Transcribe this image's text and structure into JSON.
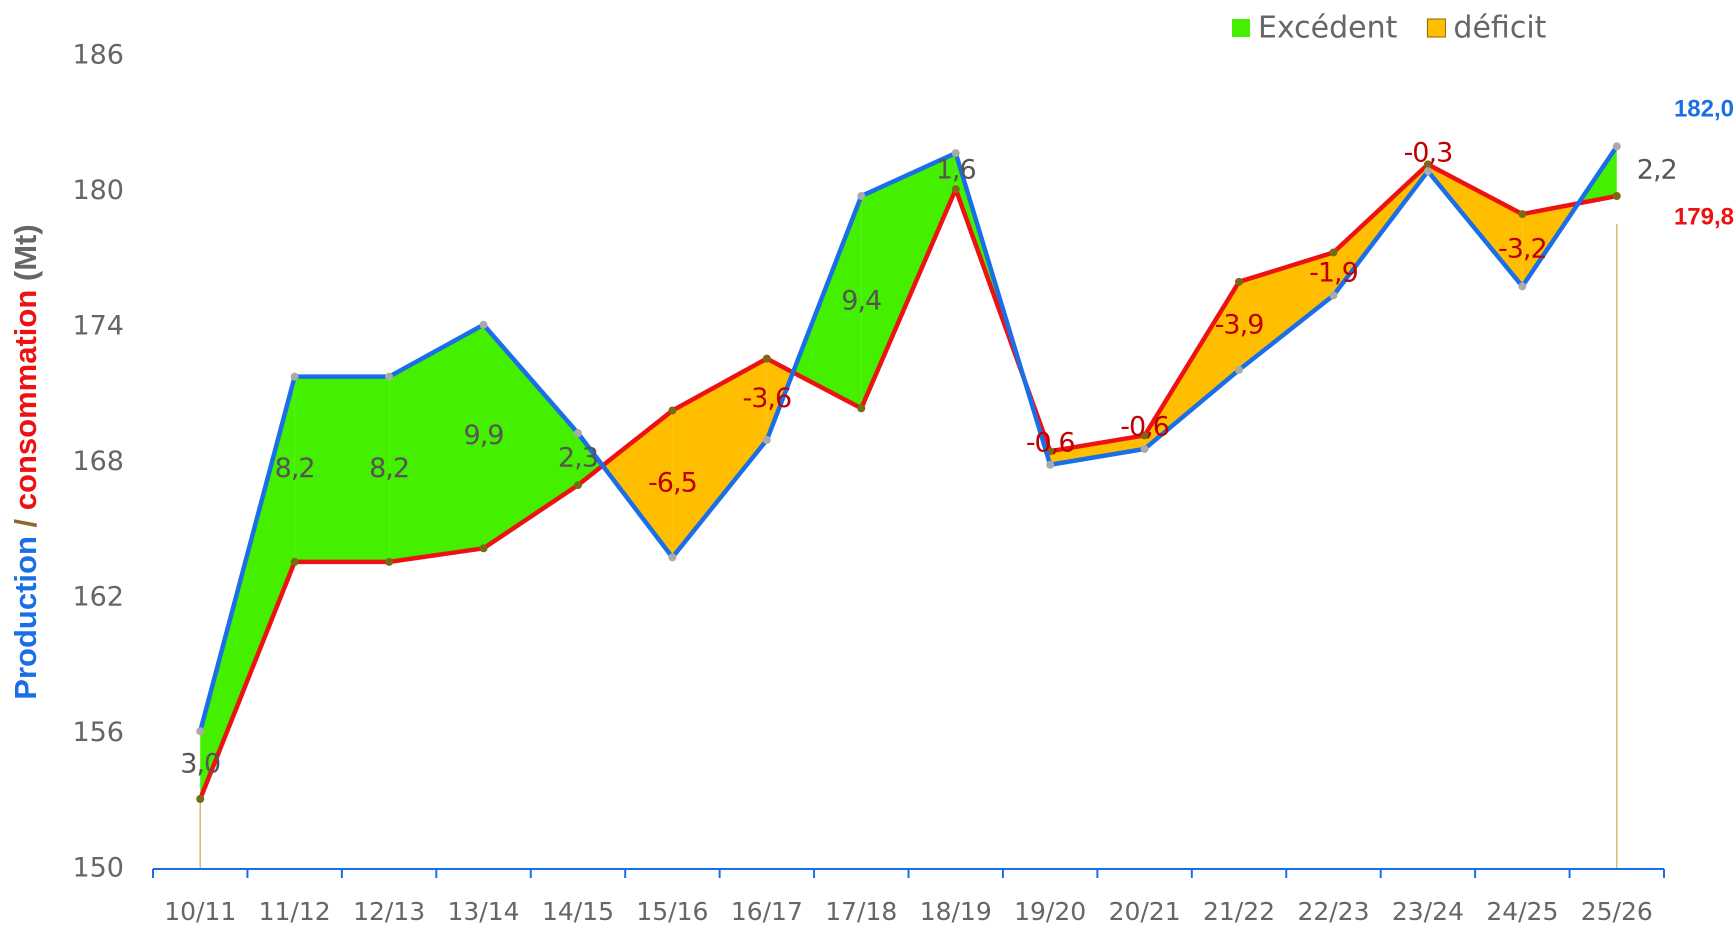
{
  "chart_data": {
    "type": "line",
    "ylabel_parts": [
      "Production",
      "/",
      "consommation",
      "(Mt)"
    ],
    "categories": [
      "10/11",
      "11/12",
      "12/13",
      "13/14",
      "14/15",
      "15/16",
      "16/17",
      "17/18",
      "18/19",
      "19/20",
      "20/21",
      "21/22",
      "22/23",
      "23/24",
      "24/25",
      "25/26"
    ],
    "series": [
      {
        "name": "Production",
        "color": "#1a6fe8",
        "values": [
          156.1,
          171.8,
          171.8,
          174.1,
          169.3,
          163.8,
          169.0,
          179.8,
          181.7,
          167.9,
          168.6,
          172.1,
          175.4,
          180.9,
          175.8,
          182.0
        ],
        "end_label": "182,0"
      },
      {
        "name": "consommation",
        "color": "#ee1111",
        "values": [
          153.1,
          163.6,
          163.6,
          164.2,
          167.0,
          170.3,
          172.6,
          170.4,
          180.1,
          168.5,
          169.2,
          176.0,
          177.3,
          181.2,
          179.0,
          179.8
        ],
        "end_label": "179,8"
      }
    ],
    "balance": {
      "values": [
        3.0,
        8.2,
        8.2,
        9.9,
        2.3,
        -6.5,
        -3.6,
        9.4,
        1.6,
        -0.6,
        -0.6,
        -3.9,
        -1.9,
        -0.3,
        -3.2,
        2.2
      ],
      "value_labels": [
        "3,0",
        "8,2",
        "8,2",
        "9,9",
        "2,3",
        "-6,5",
        "-3,6",
        "9,4",
        "1,6",
        "-0,6",
        "-0,6",
        "-3,9",
        "-1,9",
        "-0,3",
        "-3,2",
        "2,2"
      ]
    },
    "areas": [
      {
        "name": "Excédent",
        "color": "#44f000"
      },
      {
        "name": "déficit",
        "color": "#ffbf00"
      }
    ],
    "ylim": [
      150,
      186
    ],
    "yticks": [
      150,
      156,
      162,
      168,
      174,
      180,
      186
    ],
    "legend": "top-right"
  }
}
